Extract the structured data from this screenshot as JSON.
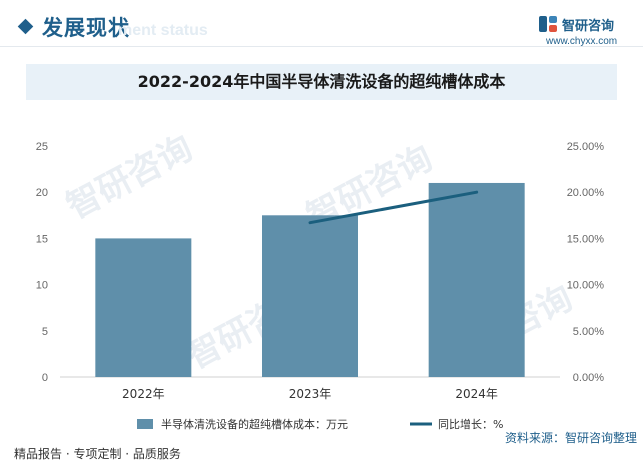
{
  "header": {
    "section_title": "发展现状",
    "section_subtitle": "ment status",
    "logo_name": "智研咨询",
    "logo_url": "www.chyxx.com"
  },
  "watermark_text": "智研咨询",
  "footer": {
    "left_text": "精品报告 · 专项定制 · 品质服务",
    "source_text": "资料来源：智研咨询整理"
  },
  "colors": {
    "bar": "#5f8faa",
    "line": "#1b5f7e",
    "brand": "#1f5f8b",
    "title_bg": "#e8f1f8"
  },
  "chart_data": {
    "type": "bar",
    "title": "2022-2024年中国半导体清洗设备的超纯槽体成本",
    "categories": [
      "2022年",
      "2023年",
      "2024年"
    ],
    "series": [
      {
        "name": "半导体清洗设备的超纯槽体成本：万元",
        "type": "bar",
        "axis": "left",
        "values": [
          15,
          17.5,
          21
        ]
      },
      {
        "name": "同比增长：%",
        "type": "line",
        "axis": "right",
        "values": [
          null,
          16.7,
          20.0
        ]
      }
    ],
    "y_left": {
      "min": 0,
      "max": 25,
      "ticks": [
        "0",
        "5",
        "10",
        "15",
        "20",
        "25"
      ]
    },
    "y_right": {
      "min": 0,
      "max": 25,
      "ticks": [
        "0.00%",
        "5.00%",
        "10.00%",
        "15.00%",
        "20.00%",
        "25.00%"
      ]
    },
    "legend": {
      "position": "bottom"
    }
  }
}
